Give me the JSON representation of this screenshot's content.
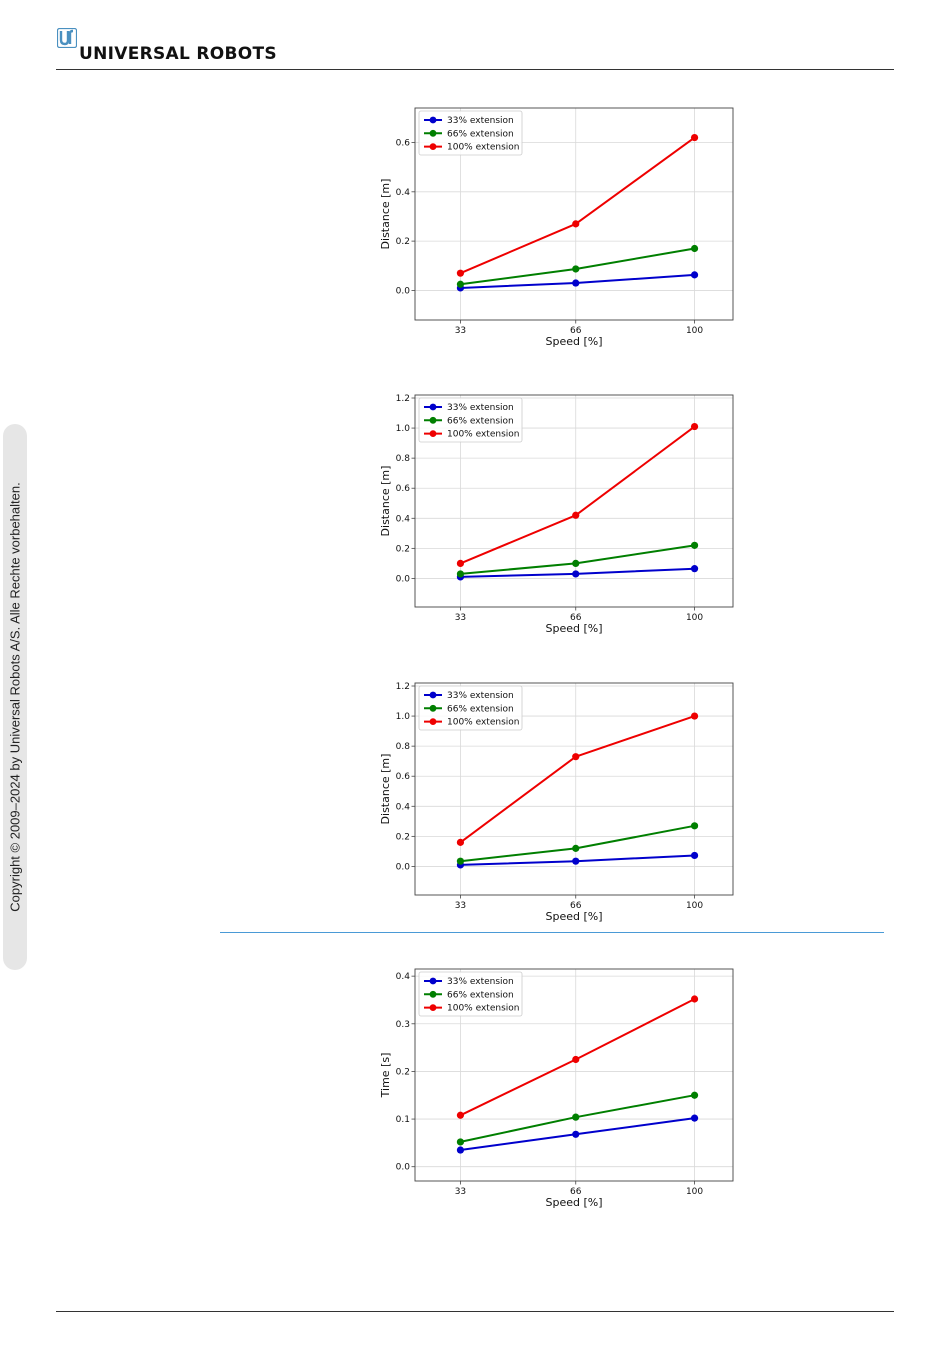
{
  "header": {
    "brand": "UNIVERSAL ROBOTS",
    "logo_icon": "ur-logo-icon",
    "logo_color": "#4a90c0"
  },
  "sidebar": {
    "copyright": "Copyright © 2009–2024 by Universal Robots A/S. Alle Rechte vorbehalten."
  },
  "colors": {
    "series": [
      "#0000cc",
      "#007f00",
      "#ee0000"
    ],
    "section_rule": "#4a9ad6"
  },
  "chart_data": [
    {
      "type": "line",
      "x": [
        33,
        66,
        100
      ],
      "xlabel": "Speed [%]",
      "ylabel": "Distance [m]",
      "xticks": [
        "33",
        "66",
        "100"
      ],
      "yticks": [
        0.0,
        0.2,
        0.4,
        0.6
      ],
      "ytick_labels": [
        "0.0",
        "0.2",
        "0.4",
        "0.6"
      ],
      "ylim": [
        -0.12,
        0.74
      ],
      "grid": true,
      "legend": "top-left",
      "series": [
        {
          "name": "33% extension",
          "color": "#0000cc",
          "values": [
            0.01,
            0.03,
            0.063
          ]
        },
        {
          "name": "66% extension",
          "color": "#007f00",
          "values": [
            0.025,
            0.087,
            0.17
          ]
        },
        {
          "name": "100% extension",
          "color": "#ee0000",
          "values": [
            0.07,
            0.27,
            0.62
          ]
        }
      ]
    },
    {
      "type": "line",
      "x": [
        33,
        66,
        100
      ],
      "xlabel": "Speed [%]",
      "ylabel": "Distance [m]",
      "xticks": [
        "33",
        "66",
        "100"
      ],
      "yticks": [
        0.0,
        0.2,
        0.4,
        0.6,
        0.8,
        1.0,
        1.2
      ],
      "ytick_labels": [
        "0.0",
        "0.2",
        "0.4",
        "0.6",
        "0.8",
        "1.0",
        "1.2"
      ],
      "ylim": [
        -0.19,
        1.22
      ],
      "grid": true,
      "legend": "top-left",
      "series": [
        {
          "name": "33% extension",
          "color": "#0000cc",
          "values": [
            0.01,
            0.03,
            0.065
          ]
        },
        {
          "name": "66% extension",
          "color": "#007f00",
          "values": [
            0.03,
            0.1,
            0.22
          ]
        },
        {
          "name": "100% extension",
          "color": "#ee0000",
          "values": [
            0.1,
            0.42,
            1.01
          ]
        }
      ]
    },
    {
      "type": "line",
      "x": [
        33,
        66,
        100
      ],
      "xlabel": "Speed [%]",
      "ylabel": "Distance [m]",
      "xticks": [
        "33",
        "66",
        "100"
      ],
      "yticks": [
        0.0,
        0.2,
        0.4,
        0.6,
        0.8,
        1.0,
        1.2
      ],
      "ytick_labels": [
        "0.0",
        "0.2",
        "0.4",
        "0.6",
        "0.8",
        "1.0",
        "1.2"
      ],
      "ylim": [
        -0.19,
        1.22
      ],
      "grid": true,
      "legend": "top-left",
      "series": [
        {
          "name": "33% extension",
          "color": "#0000cc",
          "values": [
            0.01,
            0.035,
            0.073
          ]
        },
        {
          "name": "66% extension",
          "color": "#007f00",
          "values": [
            0.035,
            0.12,
            0.27
          ]
        },
        {
          "name": "100% extension",
          "color": "#ee0000",
          "values": [
            0.16,
            0.73,
            1.0
          ]
        }
      ]
    },
    {
      "type": "line",
      "x": [
        33,
        66,
        100
      ],
      "xlabel": "Speed [%]",
      "ylabel": "Time [s]",
      "xticks": [
        "33",
        "66",
        "100"
      ],
      "yticks": [
        0.0,
        0.1,
        0.2,
        0.3,
        0.4
      ],
      "ytick_labels": [
        "0.0",
        "0.1",
        "0.2",
        "0.3",
        "0.4"
      ],
      "ylim": [
        -0.03,
        0.415
      ],
      "grid": true,
      "legend": "top-left",
      "series": [
        {
          "name": "33% extension",
          "color": "#0000cc",
          "values": [
            0.035,
            0.068,
            0.102
          ]
        },
        {
          "name": "66% extension",
          "color": "#007f00",
          "values": [
            0.052,
            0.104,
            0.15
          ]
        },
        {
          "name": "100% extension",
          "color": "#ee0000",
          "values": [
            0.108,
            0.225,
            0.352
          ]
        }
      ]
    }
  ]
}
